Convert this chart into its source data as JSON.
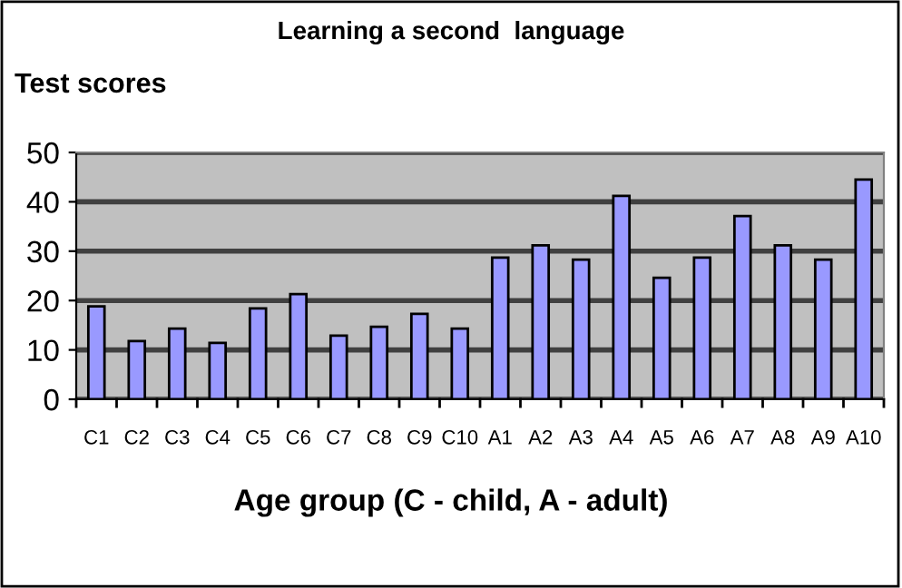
{
  "chart_data": {
    "type": "bar",
    "title": "Learning a second  language",
    "ylabel": "Test scores",
    "xlabel": "Age group (C - child, A - adult)",
    "categories": [
      "C1",
      "C2",
      "C3",
      "C4",
      "C5",
      "C6",
      "C7",
      "C8",
      "C9",
      "C10",
      "A1",
      "A2",
      "A3",
      "A4",
      "A5",
      "A6",
      "A7",
      "A8",
      "A9",
      "A10"
    ],
    "values": [
      18.8,
      11.8,
      14.3,
      11.4,
      18.4,
      21.3,
      12.9,
      14.7,
      17.3,
      14.3,
      28.7,
      31.2,
      28.3,
      41.2,
      24.6,
      28.7,
      37.1,
      31.2,
      28.3,
      44.5
    ],
    "color": "#9999ff",
    "ylim": [
      0,
      50
    ],
    "yticks": [
      0,
      10,
      20,
      30,
      40,
      50
    ],
    "grid": "y"
  }
}
